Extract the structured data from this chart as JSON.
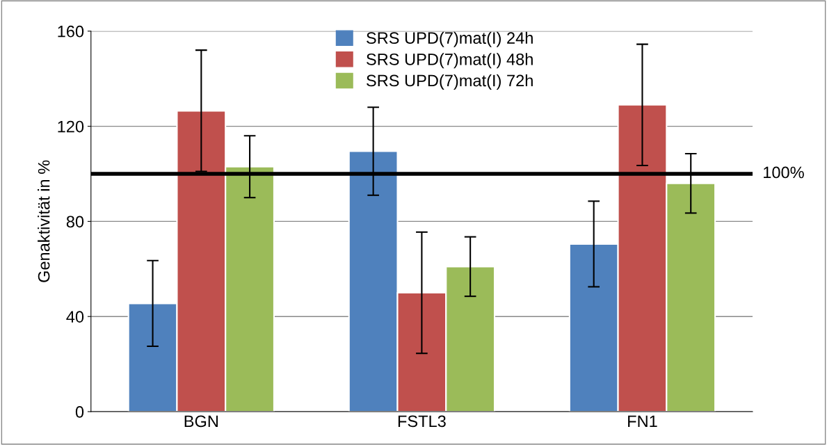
{
  "chart_data": {
    "type": "bar",
    "ylabel": "Genaktivität in %",
    "categories": [
      "BGN",
      "FSTL3",
      "FN1"
    ],
    "series": [
      {
        "name": "SRS UPD(7)mat(I) 24h",
        "color": "#4f81bd",
        "values": [
          45.5,
          109.5,
          70.5
        ],
        "errors": [
          18,
          18.5,
          18
        ]
      },
      {
        "name": "SRS UPD(7)mat(I) 48h",
        "color": "#c0504d",
        "values": [
          126.5,
          50,
          129
        ],
        "errors": [
          25.5,
          25.5,
          25.5
        ]
      },
      {
        "name": "SRS UPD(7)mat(I) 72h",
        "color": "#9bbb59",
        "values": [
          103,
          61,
          96
        ],
        "errors": [
          13,
          12.5,
          12.5
        ]
      }
    ],
    "ylim": [
      0,
      160
    ],
    "yticks": [
      0,
      40,
      80,
      120,
      160
    ],
    "grid": "y",
    "legend": "top",
    "ref_lines": [
      {
        "axis": "y",
        "value": 100,
        "label": "100%",
        "color": "#000000"
      }
    ]
  }
}
